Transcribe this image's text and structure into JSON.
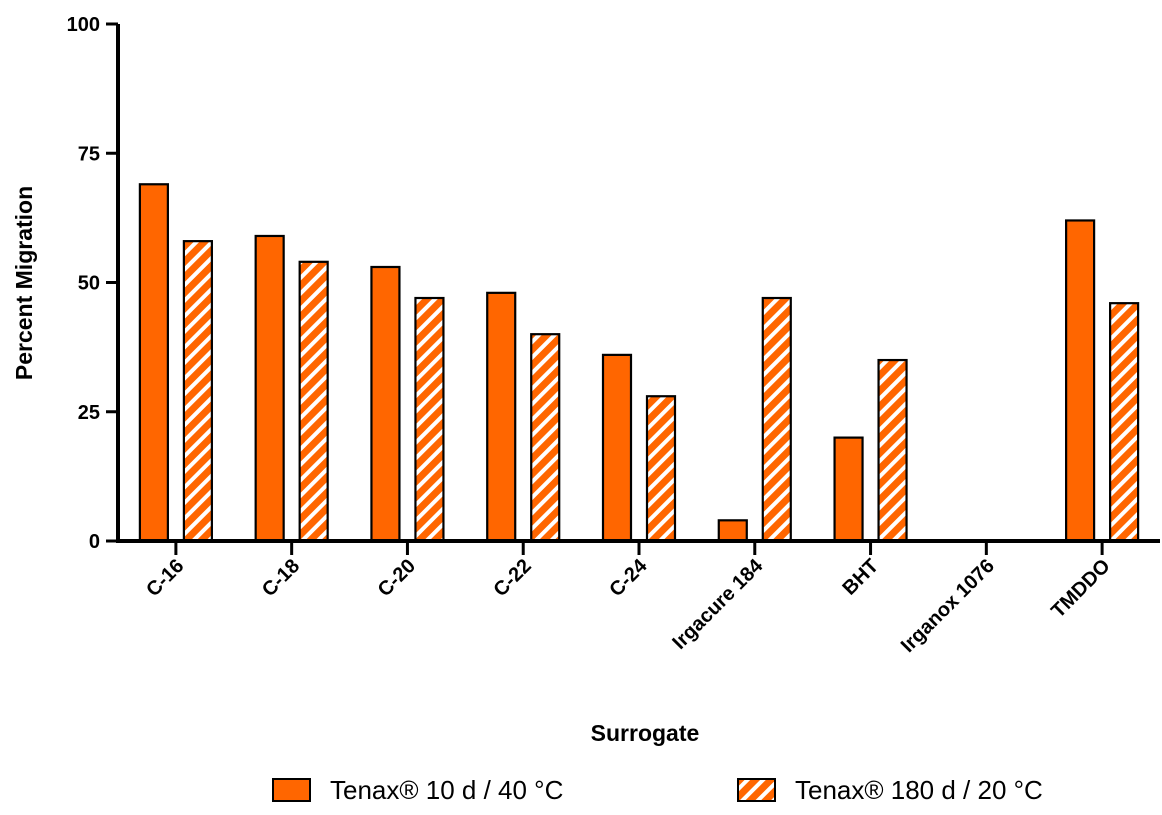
{
  "chart_data": {
    "type": "bar",
    "title": "",
    "xlabel": "Surrogate",
    "ylabel": "Percent Migration",
    "ylim": [
      0,
      100
    ],
    "yticks": [
      0,
      25,
      50,
      75,
      100
    ],
    "categories": [
      "C-16",
      "C-18",
      "C-20",
      "C-22",
      "C-24",
      "Irgacure 184",
      "BHT",
      "Irganox 1076",
      "TMDDO"
    ],
    "series": [
      {
        "name": "Tenax® 10 d / 40 °C",
        "pattern": "solid",
        "color": "#FF6600",
        "values": [
          69,
          59,
          53,
          48,
          36,
          4,
          20,
          0,
          62
        ]
      },
      {
        "name": "Tenax® 180 d / 20 °C",
        "pattern": "hatched",
        "color": "#FF6600",
        "values": [
          58,
          54,
          47,
          40,
          28,
          47,
          35,
          0,
          46
        ]
      }
    ],
    "grid": false,
    "legend_position": "bottom"
  }
}
